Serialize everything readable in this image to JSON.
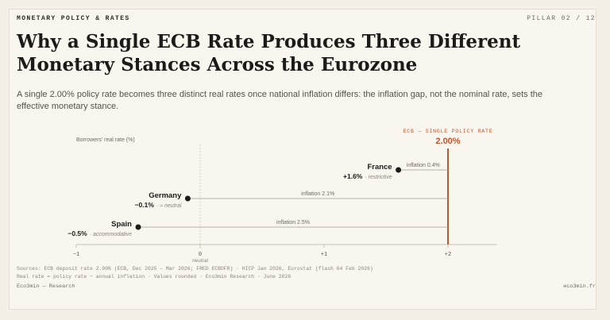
{
  "header": {
    "kicker": "MONETARY POLICY & RATES",
    "pillar": "PILLAR 02 / 12"
  },
  "title_line1": "Why a Single ECB Rate Produces Three Different",
  "title_line2": "Monetary Stances Across the Eurozone",
  "subtitle": "A single 2.00% policy rate becomes three distinct real rates once national inflation differs: the inflation gap, not the nominal rate, sets the effective monetary stance.",
  "colors": {
    "accent": "#c0552f",
    "dot": "#1c1b19",
    "line": "#b8b3a8",
    "axis": "#c9c3b6",
    "muted": "#8a857b"
  },
  "chart_data": {
    "type": "dot-range",
    "ylabel": "Borrowers' real rate (%)",
    "xlim": [
      -1,
      2.4
    ],
    "ticks": [
      -1,
      0,
      1,
      2
    ],
    "tick_labels": [
      "−1",
      "0",
      "+1",
      "+2"
    ],
    "zero_label": "neutral",
    "policy_rate": 2.0,
    "policy_label": "ECB — SINGLE POLICY RATE",
    "policy_value_label": "2.00%",
    "series": [
      {
        "country": "France",
        "real_rate": 1.6,
        "inflation": 0.4,
        "value_label": "+1.6%",
        "stance": "· restrictive",
        "inflation_label": "inflation 0.4%"
      },
      {
        "country": "Germany",
        "real_rate": -0.1,
        "inflation": 2.1,
        "value_label": "−0.1%",
        "stance": "· ≈ neutral",
        "inflation_label": "inflation 2.1%"
      },
      {
        "country": "Spain",
        "real_rate": -0.5,
        "inflation": 2.5,
        "value_label": "−0.5%",
        "stance": "· accommodative",
        "inflation_label": "inflation 2.5%"
      }
    ]
  },
  "footer": {
    "sources_line1": "Sources: ECB deposit rate 2.00% (ECB, Dec 2025 – Mar 2026; FRED ECBDFR) · HICP Jan 2026, Eurostat (flash 04 Feb 2026)",
    "sources_line2": "Real rate = policy rate − annual inflation · Values rounded · Eco3min Research · June 2026",
    "left": "Eco3min — Research",
    "right": "eco3min.fr"
  }
}
